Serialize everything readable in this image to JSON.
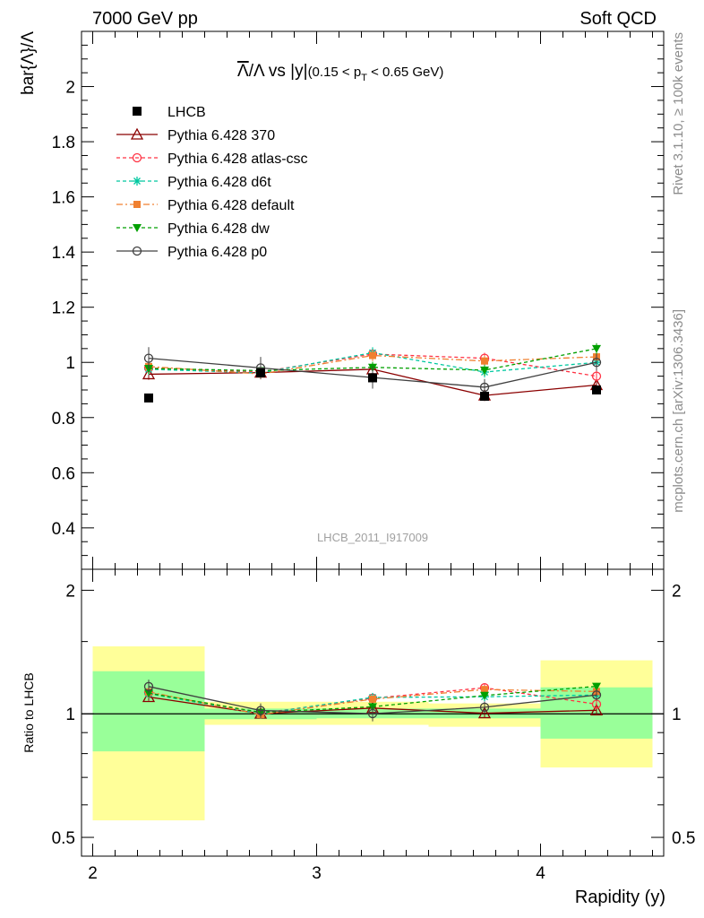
{
  "header": {
    "left": "7000 GeV pp",
    "right": "Soft QCD"
  },
  "side_labels": {
    "top": "Rivet 3.1.10, ≥ 100k events",
    "bottom": "mcplots.cern.ch [arXiv:1306.3436]"
  },
  "chart_data": {
    "type": "line",
    "title": "Λ̅/Λ vs |y|(0.15 < pT < 0.65 GeV)",
    "title_parts": {
      "lambda_bar": "Λ",
      "mid": "/Λ vs |y|",
      "range_a": "(0.15 < p",
      "range_sub": "T",
      "range_b": " < 0.65 GeV)"
    },
    "watermark": "LHCB_2011_I917009",
    "xlabel": "Rapidity (y)",
    "ylabel": "bar{Λ}/Λ",
    "ratio_ylabel": "Ratio to LHCB",
    "xlim": [
      1.95,
      4.55
    ],
    "ylim": [
      0.25,
      2.2
    ],
    "ratio_ylim": [
      0.45,
      2.25
    ],
    "x": [
      2.25,
      2.75,
      3.25,
      3.75,
      4.25
    ],
    "bin_edges": [
      2.0,
      2.5,
      3.0,
      3.5,
      4.0,
      4.5
    ],
    "x_ticks": [
      "2",
      "3",
      "4"
    ],
    "y_ticks": [
      "0.4",
      "0.6",
      "0.8",
      "1",
      "1.2",
      "1.4",
      "1.6",
      "1.8",
      "2"
    ],
    "ratio_ticks": [
      "0.5",
      "1",
      "2"
    ],
    "reference": {
      "name": "LHCB",
      "values": [
        0.871,
        0.962,
        0.944,
        0.877,
        0.9
      ],
      "band_stat": [
        [
          0.81,
          1.27
        ],
        [
          0.97,
          1.03
        ],
        [
          0.975,
          1.03
        ],
        [
          0.975,
          1.03
        ],
        [
          0.87,
          1.16
        ]
      ],
      "band_total": [
        [
          0.55,
          1.46
        ],
        [
          0.94,
          1.07
        ],
        [
          0.94,
          1.07
        ],
        [
          0.93,
          1.06
        ],
        [
          0.74,
          1.35
        ]
      ]
    },
    "series": [
      {
        "name": "Pythia 6.428 370",
        "values": [
          0.957,
          0.963,
          0.975,
          0.88,
          0.918
        ],
        "errors": [
          0.02,
          0.02,
          0.02,
          0.02,
          0.02
        ],
        "color": "#8b0000",
        "dash": "",
        "marker": "triangle-open"
      },
      {
        "name": "Pythia 6.428 atlas-csc",
        "values": [
          0.98,
          0.965,
          1.03,
          1.015,
          0.95
        ],
        "errors": [
          0.02,
          0.02,
          0.02,
          0.02,
          0.02
        ],
        "color": "#ff3344",
        "dash": "4,3",
        "marker": "circle-open"
      },
      {
        "name": "Pythia 6.428 d6t",
        "values": [
          0.975,
          0.962,
          1.035,
          0.965,
          1.0
        ],
        "errors": [
          0.02,
          0.02,
          0.02,
          0.02,
          0.02
        ],
        "color": "#00c8a0",
        "dash": "4,3",
        "marker": "star"
      },
      {
        "name": "Pythia 6.428 default",
        "values": [
          0.985,
          0.958,
          1.025,
          1.005,
          1.02
        ],
        "errors": [
          0.02,
          0.02,
          0.02,
          0.02,
          0.02
        ],
        "color": "#f08030",
        "dash": "7,3,2,3",
        "marker": "square"
      },
      {
        "name": "Pythia 6.428 dw",
        "values": [
          0.978,
          0.97,
          0.982,
          0.972,
          1.05
        ],
        "errors": [
          0.02,
          0.02,
          0.02,
          0.02,
          0.02
        ],
        "color": "#00a000",
        "dash": "4,3",
        "marker": "triangle-down"
      },
      {
        "name": "Pythia 6.428 p0",
        "values": [
          1.015,
          0.98,
          0.945,
          0.91,
          1.0
        ],
        "errors": [
          0.04,
          0.04,
          0.04,
          0.03,
          0.03
        ],
        "color": "#404040",
        "dash": "",
        "marker": "circle-open"
      }
    ],
    "colors": {
      "band_total": "#ffff99",
      "band_stat": "#99ff99",
      "reference": "#000000"
    }
  }
}
